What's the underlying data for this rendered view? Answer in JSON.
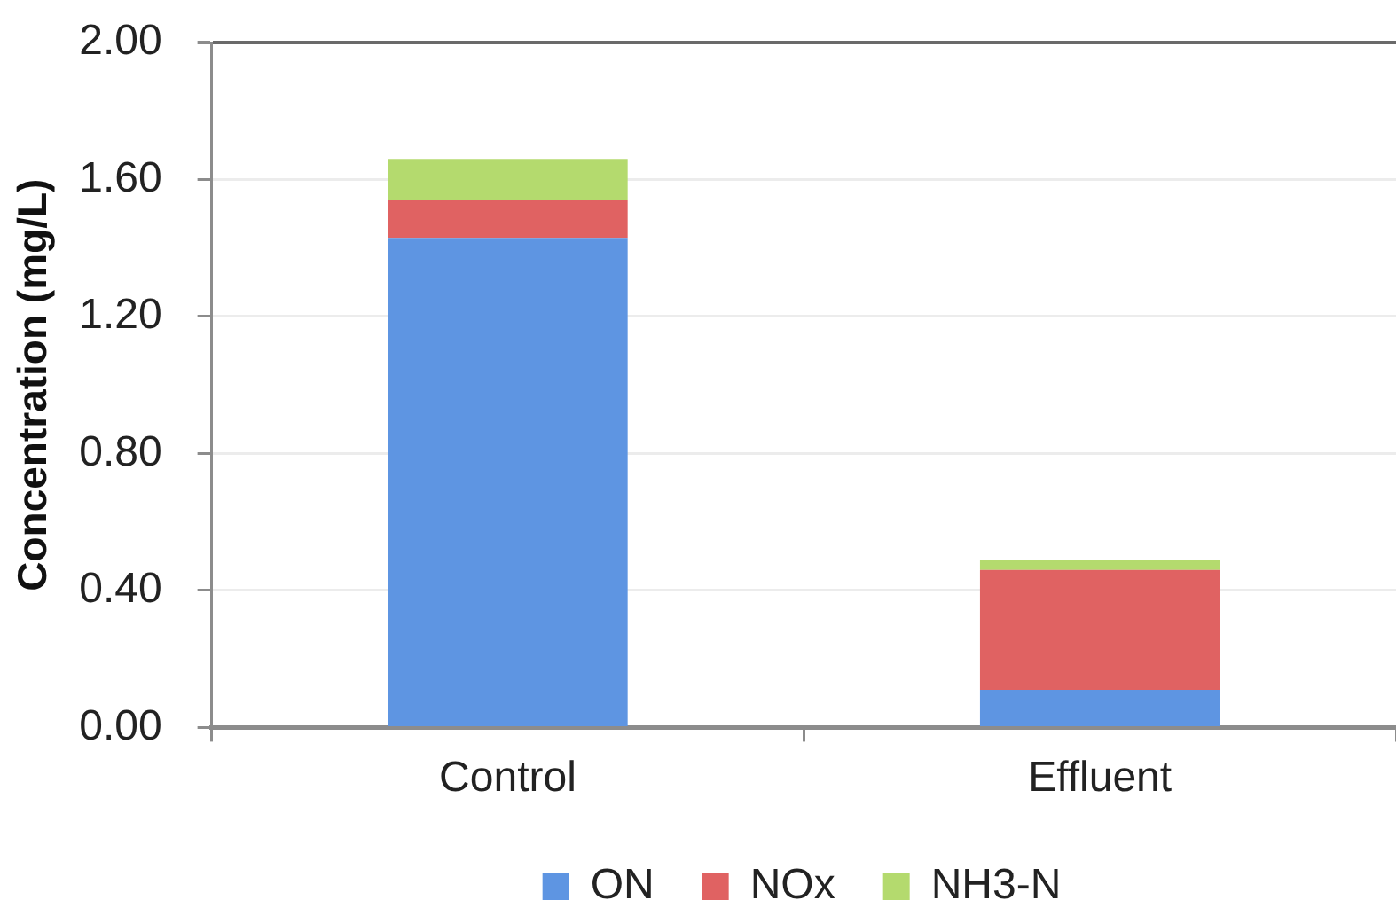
{
  "chart_data": {
    "type": "bar",
    "stacked": true,
    "ylabel": "Concentration (mg/L)",
    "categories": [
      "Control",
      "Effluent"
    ],
    "series": [
      {
        "name": "ON",
        "color": "#5e95e2",
        "values": [
          1.43,
          0.11
        ]
      },
      {
        "name": "NOx",
        "color": "#e06262",
        "values": [
          0.11,
          0.35
        ]
      },
      {
        "name": "NH3-N",
        "color": "#b4da6e",
        "values": [
          0.12,
          0.03
        ]
      }
    ],
    "ylim": [
      0,
      2
    ],
    "yticks": [
      {
        "value": 0,
        "label": "0.00"
      },
      {
        "value": 0.4,
        "label": "0.40"
      },
      {
        "value": 0.8,
        "label": "0.80"
      },
      {
        "value": 1.2,
        "label": "1.20"
      },
      {
        "value": 1.6,
        "label": "1.60"
      },
      {
        "value": 2,
        "label": "2.00"
      }
    ],
    "grid": "y",
    "legend": "bottom"
  }
}
